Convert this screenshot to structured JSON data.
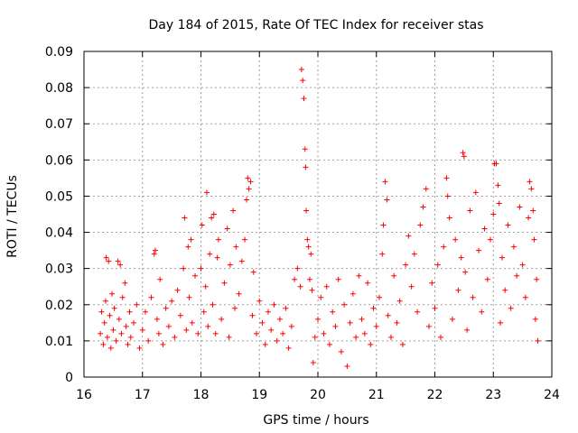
{
  "chart_data": {
    "type": "scatter",
    "title": "Day 184 of 2015, Rate Of TEC Index for receiver stas",
    "xlabel": "GPS time / hours",
    "ylabel": "ROTI / TECUs",
    "xlim": [
      16,
      24
    ],
    "ylim": [
      0,
      0.09
    ],
    "x_ticks": [
      "16",
      "17",
      "18",
      "19",
      "20",
      "21",
      "22",
      "23",
      "24"
    ],
    "y_ticks": [
      "0",
      "0.01",
      "0.02",
      "0.03",
      "0.04",
      "0.05",
      "0.06",
      "0.07",
      "0.08",
      "0.09"
    ],
    "grid": true,
    "marker": "+",
    "color": "#ff0000",
    "series": [
      {
        "name": "ROTI",
        "points": [
          [
            16.28,
            0.012
          ],
          [
            16.3,
            0.018
          ],
          [
            16.33,
            0.009
          ],
          [
            16.35,
            0.015
          ],
          [
            16.37,
            0.021
          ],
          [
            16.38,
            0.033
          ],
          [
            16.4,
            0.011
          ],
          [
            16.42,
            0.032
          ],
          [
            16.44,
            0.017
          ],
          [
            16.46,
            0.008
          ],
          [
            16.48,
            0.023
          ],
          [
            16.5,
            0.013
          ],
          [
            16.52,
            0.019
          ],
          [
            16.55,
            0.01
          ],
          [
            16.58,
            0.032
          ],
          [
            16.6,
            0.016
          ],
          [
            16.62,
            0.031
          ],
          [
            16.64,
            0.012
          ],
          [
            16.66,
            0.022
          ],
          [
            16.7,
            0.026
          ],
          [
            16.72,
            0.014
          ],
          [
            16.75,
            0.009
          ],
          [
            16.78,
            0.018
          ],
          [
            16.8,
            0.011
          ],
          [
            16.85,
            0.015
          ],
          [
            16.9,
            0.02
          ],
          [
            16.95,
            0.008
          ],
          [
            17.0,
            0.013
          ],
          [
            17.05,
            0.018
          ],
          [
            17.1,
            0.01
          ],
          [
            17.15,
            0.022
          ],
          [
            17.2,
            0.034
          ],
          [
            17.22,
            0.035
          ],
          [
            17.25,
            0.016
          ],
          [
            17.28,
            0.012
          ],
          [
            17.3,
            0.027
          ],
          [
            17.35,
            0.009
          ],
          [
            17.4,
            0.019
          ],
          [
            17.45,
            0.014
          ],
          [
            17.5,
            0.021
          ],
          [
            17.55,
            0.011
          ],
          [
            17.6,
            0.024
          ],
          [
            17.65,
            0.017
          ],
          [
            17.7,
            0.03
          ],
          [
            17.72,
            0.044
          ],
          [
            17.75,
            0.013
          ],
          [
            17.78,
            0.036
          ],
          [
            17.8,
            0.022
          ],
          [
            17.83,
            0.038
          ],
          [
            17.85,
            0.015
          ],
          [
            17.9,
            0.028
          ],
          [
            17.95,
            0.012
          ],
          [
            18.0,
            0.03
          ],
          [
            18.02,
            0.042
          ],
          [
            18.05,
            0.018
          ],
          [
            18.08,
            0.025
          ],
          [
            18.1,
            0.051
          ],
          [
            18.12,
            0.014
          ],
          [
            18.15,
            0.034
          ],
          [
            18.18,
            0.044
          ],
          [
            18.2,
            0.02
          ],
          [
            18.22,
            0.045
          ],
          [
            18.25,
            0.012
          ],
          [
            18.28,
            0.033
          ],
          [
            18.3,
            0.038
          ],
          [
            18.35,
            0.016
          ],
          [
            18.4,
            0.026
          ],
          [
            18.45,
            0.041
          ],
          [
            18.48,
            0.011
          ],
          [
            18.5,
            0.031
          ],
          [
            18.55,
            0.046
          ],
          [
            18.58,
            0.019
          ],
          [
            18.6,
            0.036
          ],
          [
            18.65,
            0.023
          ],
          [
            18.7,
            0.032
          ],
          [
            18.75,
            0.038
          ],
          [
            18.78,
            0.049
          ],
          [
            18.8,
            0.055
          ],
          [
            18.82,
            0.052
          ],
          [
            18.85,
            0.054
          ],
          [
            18.88,
            0.017
          ],
          [
            18.9,
            0.029
          ],
          [
            18.95,
            0.012
          ],
          [
            19.0,
            0.021
          ],
          [
            19.05,
            0.015
          ],
          [
            19.1,
            0.009
          ],
          [
            19.15,
            0.018
          ],
          [
            19.2,
            0.013
          ],
          [
            19.25,
            0.02
          ],
          [
            19.3,
            0.01
          ],
          [
            19.35,
            0.016
          ],
          [
            19.4,
            0.012
          ],
          [
            19.45,
            0.019
          ],
          [
            19.5,
            0.008
          ],
          [
            19.55,
            0.014
          ],
          [
            19.6,
            0.027
          ],
          [
            19.65,
            0.03
          ],
          [
            19.7,
            0.025
          ],
          [
            19.72,
            0.085
          ],
          [
            19.74,
            0.082
          ],
          [
            19.76,
            0.077
          ],
          [
            19.78,
            0.063
          ],
          [
            19.79,
            0.058
          ],
          [
            19.8,
            0.046
          ],
          [
            19.82,
            0.038
          ],
          [
            19.84,
            0.036
          ],
          [
            19.86,
            0.027
          ],
          [
            19.88,
            0.034
          ],
          [
            19.9,
            0.024
          ],
          [
            19.92,
            0.004
          ],
          [
            19.95,
            0.011
          ],
          [
            20.0,
            0.016
          ],
          [
            20.05,
            0.022
          ],
          [
            20.1,
            0.012
          ],
          [
            20.15,
            0.025
          ],
          [
            20.2,
            0.009
          ],
          [
            20.25,
            0.018
          ],
          [
            20.3,
            0.014
          ],
          [
            20.35,
            0.027
          ],
          [
            20.4,
            0.007
          ],
          [
            20.45,
            0.02
          ],
          [
            20.5,
            0.003
          ],
          [
            20.55,
            0.015
          ],
          [
            20.6,
            0.023
          ],
          [
            20.65,
            0.011
          ],
          [
            20.7,
            0.028
          ],
          [
            20.75,
            0.016
          ],
          [
            20.8,
            0.012
          ],
          [
            20.85,
            0.026
          ],
          [
            20.9,
            0.009
          ],
          [
            20.95,
            0.019
          ],
          [
            21.0,
            0.014
          ],
          [
            21.05,
            0.022
          ],
          [
            21.1,
            0.034
          ],
          [
            21.12,
            0.042
          ],
          [
            21.15,
            0.054
          ],
          [
            21.18,
            0.049
          ],
          [
            21.2,
            0.017
          ],
          [
            21.25,
            0.011
          ],
          [
            21.3,
            0.028
          ],
          [
            21.35,
            0.015
          ],
          [
            21.4,
            0.021
          ],
          [
            21.45,
            0.009
          ],
          [
            21.5,
            0.031
          ],
          [
            21.55,
            0.039
          ],
          [
            21.6,
            0.025
          ],
          [
            21.65,
            0.034
          ],
          [
            21.7,
            0.018
          ],
          [
            21.75,
            0.042
          ],
          [
            21.8,
            0.047
          ],
          [
            21.85,
            0.052
          ],
          [
            21.9,
            0.014
          ],
          [
            21.95,
            0.026
          ],
          [
            22.0,
            0.019
          ],
          [
            22.05,
            0.031
          ],
          [
            22.1,
            0.011
          ],
          [
            22.15,
            0.036
          ],
          [
            22.2,
            0.055
          ],
          [
            22.22,
            0.05
          ],
          [
            22.25,
            0.044
          ],
          [
            22.3,
            0.016
          ],
          [
            22.35,
            0.038
          ],
          [
            22.4,
            0.024
          ],
          [
            22.45,
            0.033
          ],
          [
            22.48,
            0.062
          ],
          [
            22.5,
            0.061
          ],
          [
            22.52,
            0.029
          ],
          [
            22.55,
            0.013
          ],
          [
            22.6,
            0.046
          ],
          [
            22.65,
            0.022
          ],
          [
            22.7,
            0.051
          ],
          [
            22.75,
            0.035
          ],
          [
            22.8,
            0.018
          ],
          [
            22.85,
            0.041
          ],
          [
            22.9,
            0.027
          ],
          [
            22.95,
            0.038
          ],
          [
            23.0,
            0.045
          ],
          [
            23.02,
            0.059
          ],
          [
            23.05,
            0.059
          ],
          [
            23.08,
            0.053
          ],
          [
            23.1,
            0.048
          ],
          [
            23.12,
            0.015
          ],
          [
            23.15,
            0.033
          ],
          [
            23.2,
            0.024
          ],
          [
            23.25,
            0.042
          ],
          [
            23.3,
            0.019
          ],
          [
            23.35,
            0.036
          ],
          [
            23.4,
            0.028
          ],
          [
            23.45,
            0.047
          ],
          [
            23.5,
            0.031
          ],
          [
            23.55,
            0.022
          ],
          [
            23.6,
            0.044
          ],
          [
            23.62,
            0.054
          ],
          [
            23.65,
            0.052
          ],
          [
            23.68,
            0.046
          ],
          [
            23.7,
            0.038
          ],
          [
            23.72,
            0.016
          ],
          [
            23.74,
            0.027
          ],
          [
            23.76,
            0.01
          ]
        ]
      }
    ]
  }
}
